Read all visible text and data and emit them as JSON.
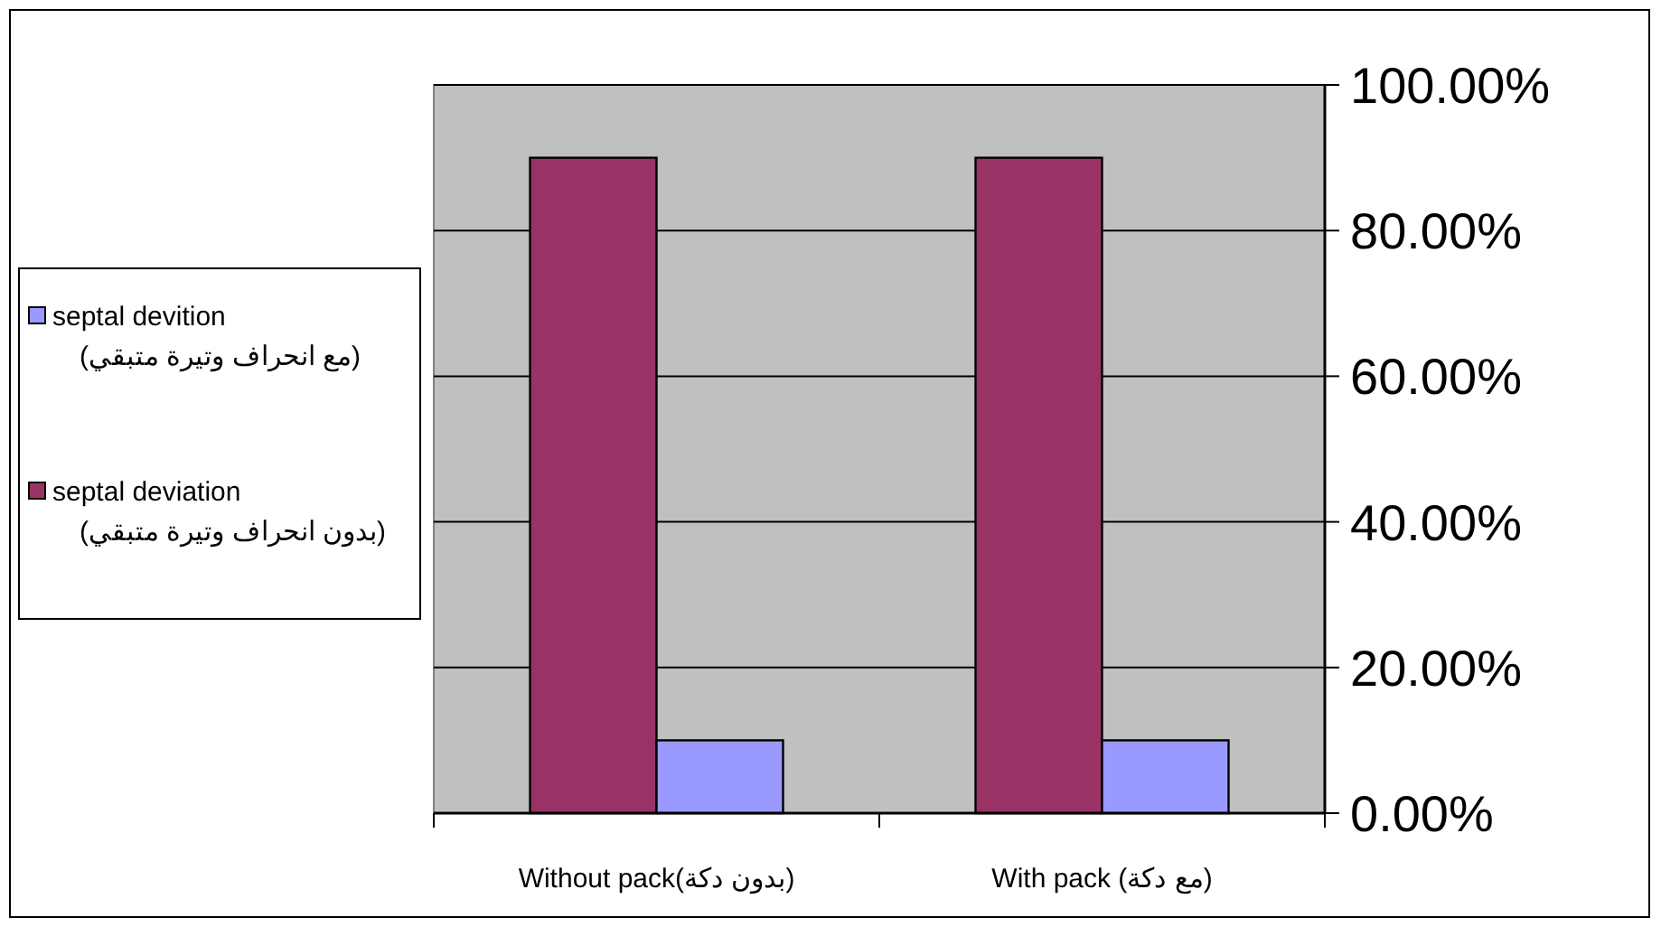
{
  "chart_data": {
    "type": "bar",
    "categories": [
      "Without pack(بدون دكة)",
      "With pack (مع دكة)"
    ],
    "series": [
      {
        "name": "septal deviation\n(بدون انحراف وتيرة متبقي)",
        "color": "#993366",
        "values": [
          90,
          90
        ]
      },
      {
        "name": "septal devition\n(مع انحراف وتيرة متبقي)",
        "color": "#9999ff",
        "values": [
          10,
          10
        ]
      }
    ],
    "ylim": [
      0,
      100
    ],
    "yticks": [
      {
        "value": 0,
        "label": "0.00%"
      },
      {
        "value": 20,
        "label": "20.00%"
      },
      {
        "value": 40,
        "label": "40.00%"
      },
      {
        "value": 60,
        "label": "60.00%"
      },
      {
        "value": 80,
        "label": "80.00%"
      },
      {
        "value": 100,
        "label": "100.00%"
      }
    ],
    "grid": "y",
    "legend": "left"
  }
}
